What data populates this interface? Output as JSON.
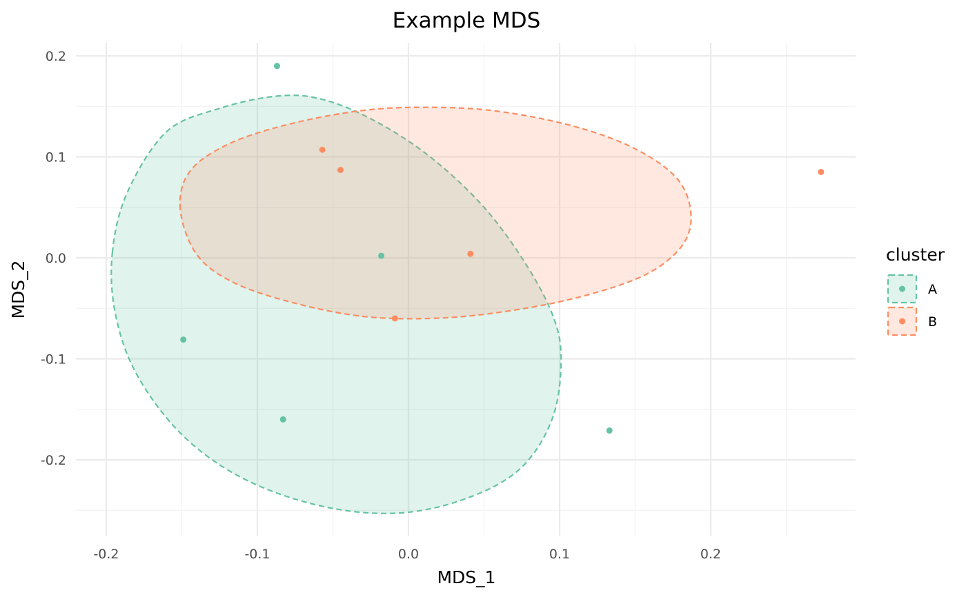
{
  "chart_data": {
    "type": "scatter",
    "title": "Example MDS",
    "xlabel": "MDS_1",
    "ylabel": "MDS_2",
    "xlim": [
      -0.2,
      0.29
    ],
    "ylim": [
      -0.26,
      0.21
    ],
    "x_ticks": [
      -0.2,
      -0.1,
      0.0,
      0.1,
      0.2
    ],
    "x_tick_labels": [
      "-0.2",
      "-0.1",
      "0.0",
      "0.1",
      "0.2"
    ],
    "y_ticks": [
      0.2,
      0.1,
      0.0,
      -0.1,
      -0.2
    ],
    "y_tick_labels": [
      "0.2",
      "0.1",
      "0.0",
      "-0.1",
      "-0.2"
    ],
    "grid": true,
    "legend": {
      "title": "cluster",
      "position": "right"
    },
    "series": [
      {
        "name": "A",
        "color": "#66c2a5",
        "points": [
          {
            "x": -0.087,
            "y": 0.19
          },
          {
            "x": -0.018,
            "y": 0.002
          },
          {
            "x": -0.149,
            "y": -0.081
          },
          {
            "x": -0.083,
            "y": -0.16
          },
          {
            "x": 0.133,
            "y": -0.171
          }
        ],
        "ellipse": {
          "shape": "confidence-ellipse",
          "outline": [
            [
              -0.196,
              0.005
            ],
            [
              -0.186,
              0.065
            ],
            [
              -0.16,
              0.125
            ],
            [
              -0.125,
              0.148
            ],
            [
              -0.088,
              0.16
            ],
            [
              -0.06,
              0.158
            ],
            [
              -0.028,
              0.14
            ],
            [
              0.01,
              0.105
            ],
            [
              0.047,
              0.055
            ],
            [
              0.075,
              0.0
            ],
            [
              0.095,
              -0.055
            ],
            [
              0.101,
              -0.1
            ],
            [
              0.095,
              -0.16
            ],
            [
              0.073,
              -0.21
            ],
            [
              0.035,
              -0.24
            ],
            [
              -0.01,
              -0.253
            ],
            [
              -0.06,
              -0.245
            ],
            [
              -0.11,
              -0.218
            ],
            [
              -0.15,
              -0.175
            ],
            [
              -0.18,
              -0.115
            ],
            [
              -0.194,
              -0.055
            ]
          ]
        }
      },
      {
        "name": "B",
        "color": "#fc8d62",
        "points": [
          {
            "x": -0.057,
            "y": 0.107
          },
          {
            "x": -0.045,
            "y": 0.087
          },
          {
            "x": 0.041,
            "y": 0.004
          },
          {
            "x": -0.009,
            "y": -0.06
          },
          {
            "x": 0.273,
            "y": 0.085
          }
        ],
        "ellipse": {
          "shape": "confidence-ellipse",
          "outline": [
            [
              -0.151,
              0.048
            ],
            [
              -0.145,
              0.085
            ],
            [
              -0.12,
              0.112
            ],
            [
              -0.08,
              0.132
            ],
            [
              -0.03,
              0.146
            ],
            [
              0.015,
              0.149
            ],
            [
              0.06,
              0.145
            ],
            [
              0.11,
              0.13
            ],
            [
              0.15,
              0.108
            ],
            [
              0.178,
              0.078
            ],
            [
              0.187,
              0.042
            ],
            [
              0.18,
              0.01
            ],
            [
              0.155,
              -0.018
            ],
            [
              0.11,
              -0.04
            ],
            [
              0.06,
              -0.054
            ],
            [
              0.015,
              -0.06
            ],
            [
              -0.03,
              -0.058
            ],
            [
              -0.075,
              -0.045
            ],
            [
              -0.115,
              -0.025
            ],
            [
              -0.14,
              0.003
            ]
          ]
        }
      }
    ]
  }
}
